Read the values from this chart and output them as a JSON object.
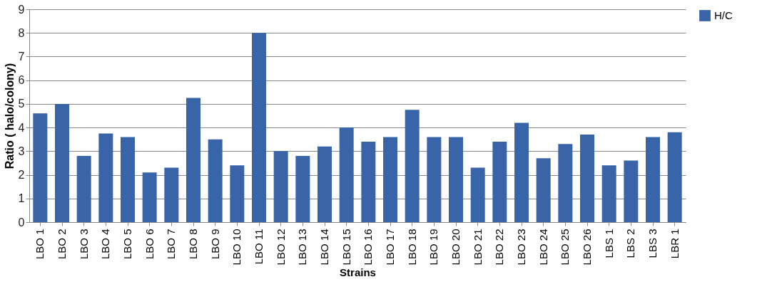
{
  "chart_data": {
    "type": "bar",
    "xlabel": "Strains",
    "ylabel": "Ratio ( halo/colony)",
    "categories": [
      "LBO 1",
      "LBO 2",
      "LBO 3",
      "LBO 4",
      "LBO 5",
      "LBO 6",
      "LBO 7",
      "LBO 8",
      "LBO 9",
      "LBO 10",
      "LBO 11",
      "LBO 12",
      "LBO 13",
      "LBO 14",
      "LBO 15",
      "LBO 16",
      "LBO 17",
      "LBO 18",
      "LBO 19",
      "LBO 20",
      "LBO 21",
      "LBO 22",
      "LBO 23",
      "LBO 24",
      "LBO 25",
      "LBO 26",
      "LBS 1",
      "LBS 2",
      "LBS 3",
      "LBR 1"
    ],
    "series": [
      {
        "name": "H/C",
        "color": "#3a64a8",
        "values": [
          4.6,
          5.0,
          2.8,
          3.75,
          3.6,
          2.1,
          2.3,
          5.25,
          3.5,
          2.4,
          8.0,
          3.0,
          2.8,
          3.2,
          4.0,
          3.4,
          3.6,
          4.75,
          3.6,
          3.6,
          2.3,
          3.4,
          4.2,
          2.7,
          3.3,
          3.7,
          2.4,
          2.6,
          3.6,
          3.8
        ]
      }
    ],
    "ylim": [
      0,
      9
    ],
    "yticks": [
      0,
      1,
      2,
      3,
      4,
      5,
      6,
      7,
      8,
      9
    ],
    "grid": "y",
    "legend": "right"
  }
}
